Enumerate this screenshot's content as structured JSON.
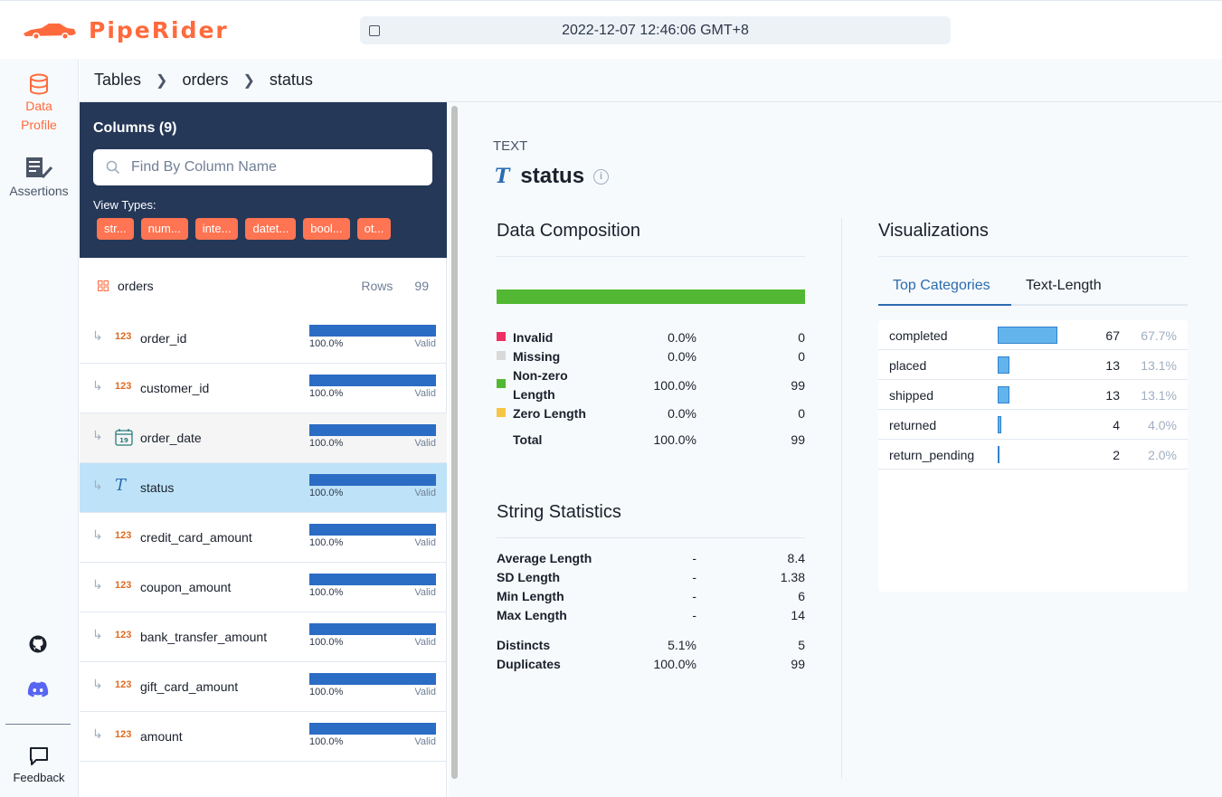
{
  "app": {
    "name": "PipeRider",
    "timestamp": "2022-12-07 12:46:06 GMT+8"
  },
  "nav": {
    "data_profile": [
      "Data",
      "Profile"
    ],
    "assertions": "Assertions",
    "feedback": "Feedback"
  },
  "breadcrumb": [
    "Tables",
    "orders",
    "status"
  ],
  "columns_panel": {
    "title": "Columns (9)",
    "search_placeholder": "Find By Column Name",
    "view_types_label": "View Types:",
    "chips": [
      "str...",
      "num...",
      "inte...",
      "datet...",
      "bool...",
      "ot..."
    ],
    "table_name": "orders",
    "rows_label": "Rows",
    "rows_value": "99",
    "columns": [
      {
        "type": "123",
        "name": "order_id",
        "pct": "100.0%",
        "valid": "Valid"
      },
      {
        "type": "123",
        "name": "customer_id",
        "pct": "100.0%",
        "valid": "Valid"
      },
      {
        "type": "date",
        "name": "order_date",
        "pct": "100.0%",
        "valid": "Valid"
      },
      {
        "type": "T",
        "name": "status",
        "pct": "100.0%",
        "valid": "Valid"
      },
      {
        "type": "123",
        "name": "credit_card_amount",
        "pct": "100.0%",
        "valid": "Valid"
      },
      {
        "type": "123",
        "name": "coupon_amount",
        "pct": "100.0%",
        "valid": "Valid"
      },
      {
        "type": "123",
        "name": "bank_transfer_amount",
        "pct": "100.0%",
        "valid": "Valid"
      },
      {
        "type": "123",
        "name": "gift_card_amount",
        "pct": "100.0%",
        "valid": "Valid"
      },
      {
        "type": "123",
        "name": "amount",
        "pct": "100.0%",
        "valid": "Valid"
      }
    ]
  },
  "detail": {
    "data_type": "TEXT",
    "type_icon": "T",
    "column_name": "status",
    "composition_title": "Data Composition",
    "composition": [
      {
        "label": "Invalid",
        "pct": "0.0%",
        "count": "0",
        "color": "#ed2f62"
      },
      {
        "label": "Missing",
        "pct": "0.0%",
        "count": "0",
        "color": "#d9d9d9"
      },
      {
        "label": "Non-zero",
        "label2": "Length",
        "pct": "100.0%",
        "count": "99",
        "color": "#52b833"
      },
      {
        "label": "Zero Length",
        "pct": "0.0%",
        "count": "0",
        "color": "#f6c544"
      }
    ],
    "total": {
      "label": "Total",
      "pct": "100.0%",
      "count": "99"
    },
    "string_stats_title": "String Statistics",
    "string_stats": [
      {
        "label": "Average Length",
        "pct": "-",
        "value": "8.4"
      },
      {
        "label": "SD Length",
        "pct": "-",
        "value": "1.38"
      },
      {
        "label": "Min Length",
        "pct": "-",
        "value": "6"
      },
      {
        "label": "Max Length",
        "pct": "-",
        "value": "14"
      }
    ],
    "dup_stats": [
      {
        "label": "Distincts",
        "pct": "5.1%",
        "value": "5"
      },
      {
        "label": "Duplicates",
        "pct": "100.0%",
        "value": "99"
      }
    ],
    "visualizations_title": "Visualizations",
    "tabs": [
      "Top Categories",
      "Text-Length"
    ],
    "categories": [
      {
        "name": "completed",
        "count": 67,
        "pct": "67.7%"
      },
      {
        "name": "placed",
        "count": 13,
        "pct": "13.1%"
      },
      {
        "name": "shipped",
        "count": 13,
        "pct": "13.1%"
      },
      {
        "name": "returned",
        "count": 4,
        "pct": "4.0%"
      },
      {
        "name": "return_pending",
        "count": 2,
        "pct": "2.0%"
      }
    ]
  }
}
